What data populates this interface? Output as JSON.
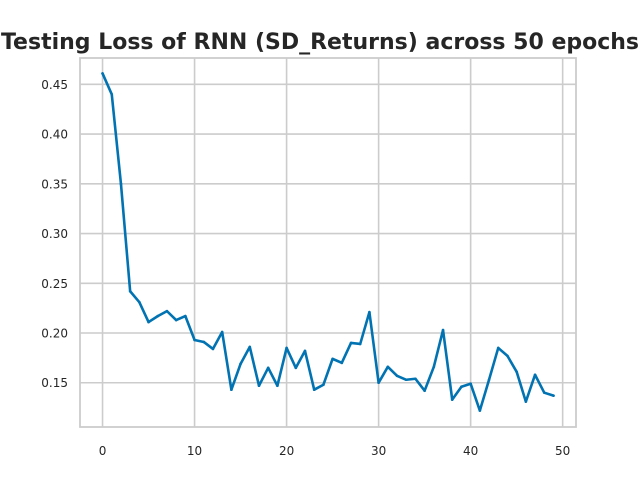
{
  "chart_data": {
    "type": "line",
    "title": "Testing Loss of RNN (SD_Returns) across 50 epochs",
    "xlabel": "",
    "ylabel": "",
    "xlim": [
      -2.45,
      51.45
    ],
    "ylim": [
      0.1055,
      0.4765
    ],
    "xticks": [
      0,
      10,
      20,
      30,
      40,
      50
    ],
    "yticks": [
      0.15,
      0.2,
      0.25,
      0.3,
      0.35,
      0.4,
      0.45
    ],
    "x_tick_labels": [
      "0",
      "10",
      "20",
      "30",
      "40",
      "50"
    ],
    "y_tick_labels": [
      "0.15",
      "0.20",
      "0.25",
      "0.30",
      "0.35",
      "0.40",
      "0.45"
    ],
    "grid": true,
    "series": [
      {
        "color": "#0173b2",
        "x": [
          0,
          1,
          2,
          3,
          4,
          5,
          6,
          7,
          8,
          9,
          10,
          11,
          12,
          13,
          14,
          15,
          16,
          17,
          18,
          19,
          20,
          21,
          22,
          23,
          24,
          25,
          26,
          27,
          28,
          29,
          30,
          31,
          32,
          33,
          34,
          35,
          36,
          37,
          38,
          39,
          40,
          41,
          42,
          43,
          44,
          45,
          46,
          47,
          48,
          49
        ],
        "values": [
          0.461,
          0.44,
          0.35,
          0.242,
          0.231,
          0.211,
          0.217,
          0.222,
          0.213,
          0.217,
          0.193,
          0.191,
          0.184,
          0.201,
          0.143,
          0.169,
          0.186,
          0.147,
          0.165,
          0.147,
          0.185,
          0.165,
          0.182,
          0.143,
          0.148,
          0.174,
          0.17,
          0.19,
          0.189,
          0.221,
          0.15,
          0.166,
          0.157,
          0.153,
          0.154,
          0.142,
          0.166,
          0.203,
          0.133,
          0.146,
          0.149,
          0.122,
          0.153,
          0.185,
          0.177,
          0.161,
          0.131,
          0.158,
          0.14,
          0.137
        ]
      }
    ]
  }
}
